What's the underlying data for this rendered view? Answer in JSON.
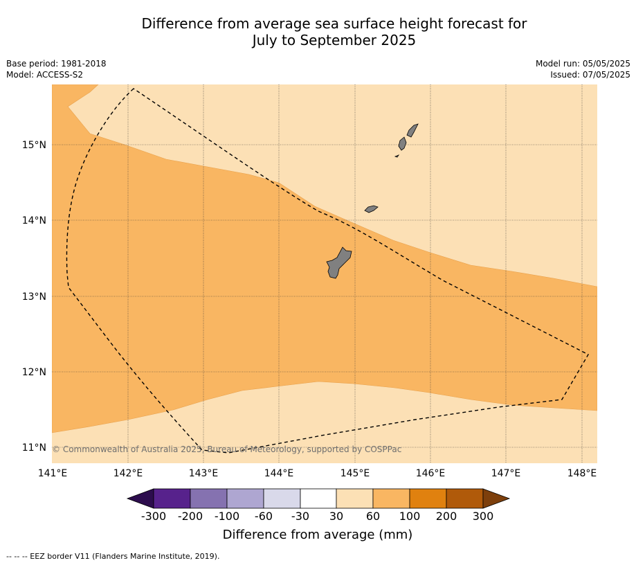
{
  "title_line1": "Difference from average sea surface height forecast for",
  "title_line2": "July to September 2025",
  "meta_left": [
    "Base period: 1981-2018",
    "Model: ACCESS-S2"
  ],
  "meta_right": [
    "Model run: 05/05/2025",
    "Issued: 07/05/2025"
  ],
  "map": {
    "lon_range": [
      141.0,
      148.2
    ],
    "lat_range": [
      10.8,
      15.8
    ],
    "lon_ticks": [
      "141°E",
      "142°E",
      "143°E",
      "144°E",
      "145°E",
      "146°E",
      "147°E",
      "148°E"
    ],
    "lat_ticks": [
      "11°N",
      "12°N",
      "13°N",
      "14°N",
      "15°N"
    ],
    "regions": [
      {
        "category": "30 to 60",
        "color": "#fce0b5"
      },
      {
        "category": "60 to 100",
        "color": "#f9b662"
      }
    ],
    "land_color": "#808080",
    "islands": [
      "Guam",
      "Rota",
      "Tinian",
      "Saipan"
    ],
    "eez_border": "dashed",
    "copyright": "© Commonwealth of Australia 2025, Bureau of Meteorology, supported by COSPPac"
  },
  "colorbar": {
    "label": "Difference from average (mm)",
    "ticks": [
      "-300",
      "-200",
      "-100",
      "-60",
      "-30",
      "30",
      "60",
      "100",
      "200",
      "300"
    ],
    "colors": [
      "#2d0d4e",
      "#57228c",
      "#8572b0",
      "#aea6d1",
      "#d9d9ea",
      "#ffffff",
      "#fce0b5",
      "#f9b662",
      "#e0810f",
      "#b05a0a",
      "#7d3f0c"
    ]
  },
  "footnote": "-- -- -- EEZ border V11 (Flanders Marine Institute, 2019)."
}
